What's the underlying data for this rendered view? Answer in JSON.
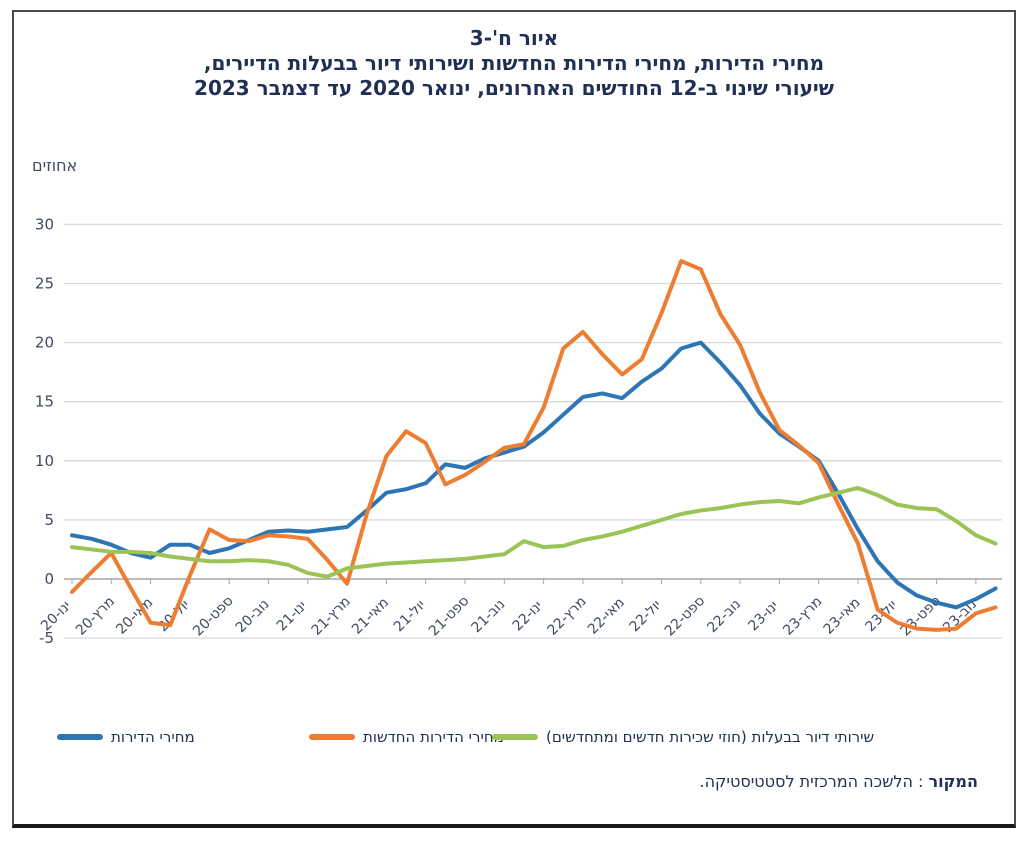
{
  "title": {
    "figure_label": "איור ח'-3",
    "line2": "מחירי הדירות, מחירי הדירות החדשות ושירותי דיור בבעלות הדיירים,",
    "line3": "שיעורי שינוי ב-12 החודשים האחרונים, ינואר 2020 עד דצמבר 2023"
  },
  "axis": {
    "units_label": "אחוזים"
  },
  "source": {
    "bold": "המקור",
    "rest": " : הלשכה המרכזית לסטטיסטיקה."
  },
  "chart_data": {
    "type": "line",
    "title": "מחירי הדירות, מחירי הדירות החדשות ושירותי דיור בבעלות הדיירים, שיעורי שינוי ב-12 החודשים האחרונים, ינואר 2020 עד דצמבר 2023",
    "ylabel": "אחוזים",
    "ylim": [
      -5,
      30
    ],
    "y_ticks": [
      30,
      25,
      20,
      15,
      10,
      5,
      0,
      -5
    ],
    "grid": "horizontal",
    "legend_position": "bottom",
    "x_start": "ינואר 2020",
    "x_end": "דצמבר 2023",
    "n_points": 48,
    "x_tick_labels": [
      "ינו-20",
      "מרץ-20",
      "מאי-20",
      "יול-20",
      "ספט-20",
      "נוב-20",
      "ינו-21",
      "מרץ-21",
      "מאי-21",
      "יול-21",
      "ספט-21",
      "נוב-21",
      "ינו-22",
      "מרץ-22",
      "מאי-22",
      "יול-22",
      "ספט-22",
      "נוב-22",
      "ינו-23",
      "מרץ-23",
      "מאי-23",
      "יול-23",
      "ספט-23",
      "נוב-23"
    ],
    "series": [
      {
        "name": "מחירי הדירות",
        "color": "#2E75B6",
        "values": [
          3.7,
          3.4,
          2.9,
          2.2,
          1.8,
          2.9,
          2.9,
          2.2,
          2.6,
          3.3,
          4.0,
          4.1,
          4.0,
          4.2,
          4.4,
          5.8,
          7.3,
          7.6,
          8.1,
          9.7,
          9.4,
          10.2,
          10.7,
          11.2,
          12.4,
          13.9,
          15.4,
          15.7,
          15.3,
          16.7,
          17.8,
          19.5,
          20.0,
          18.3,
          16.4,
          14.0,
          12.3,
          11.2,
          10.0,
          7.2,
          4.2,
          1.5,
          -0.3,
          -1.4,
          -2.0,
          -2.4,
          -1.7,
          -0.8
        ]
      },
      {
        "name": "מחירי הדירות החדשות",
        "color": "#ED7D31",
        "values": [
          -1.1,
          0.6,
          2.2,
          -0.8,
          -3.7,
          -3.9,
          0.3,
          4.2,
          3.3,
          3.2,
          3.7,
          3.6,
          3.4,
          1.6,
          -0.4,
          5.5,
          10.4,
          12.5,
          11.5,
          8.0,
          8.8,
          9.9,
          11.1,
          11.4,
          14.5,
          19.5,
          20.9,
          19.0,
          17.3,
          18.6,
          22.5,
          26.9,
          26.2,
          22.4,
          19.8,
          15.8,
          12.6,
          11.3,
          9.8,
          6.3,
          3.0,
          -2.6,
          -3.7,
          -4.2,
          -4.3,
          -4.2,
          -2.9,
          -2.4
        ]
      },
      {
        "name": "שירותי דיור בבעלות (חוזי שכירות חדשים ומתחדשים)",
        "color": "#9BC356",
        "values": [
          2.7,
          2.5,
          2.3,
          2.3,
          2.2,
          1.9,
          1.7,
          1.5,
          1.5,
          1.6,
          1.5,
          1.2,
          0.5,
          0.2,
          0.9,
          1.1,
          1.3,
          1.4,
          1.5,
          1.6,
          1.7,
          1.9,
          2.1,
          3.2,
          2.7,
          2.8,
          3.3,
          3.6,
          4.0,
          4.5,
          5.0,
          5.5,
          5.8,
          6.0,
          6.3,
          6.5,
          6.6,
          6.4,
          6.9,
          7.3,
          7.7,
          7.1,
          6.3,
          6.0,
          5.9,
          4.9,
          3.7,
          3.0
        ]
      }
    ],
    "style": {
      "gridline_color": "#D9D9D9",
      "axis_color": "#A6A6A6",
      "tick_label_color": "#3F4A63",
      "line_width": 4
    }
  }
}
